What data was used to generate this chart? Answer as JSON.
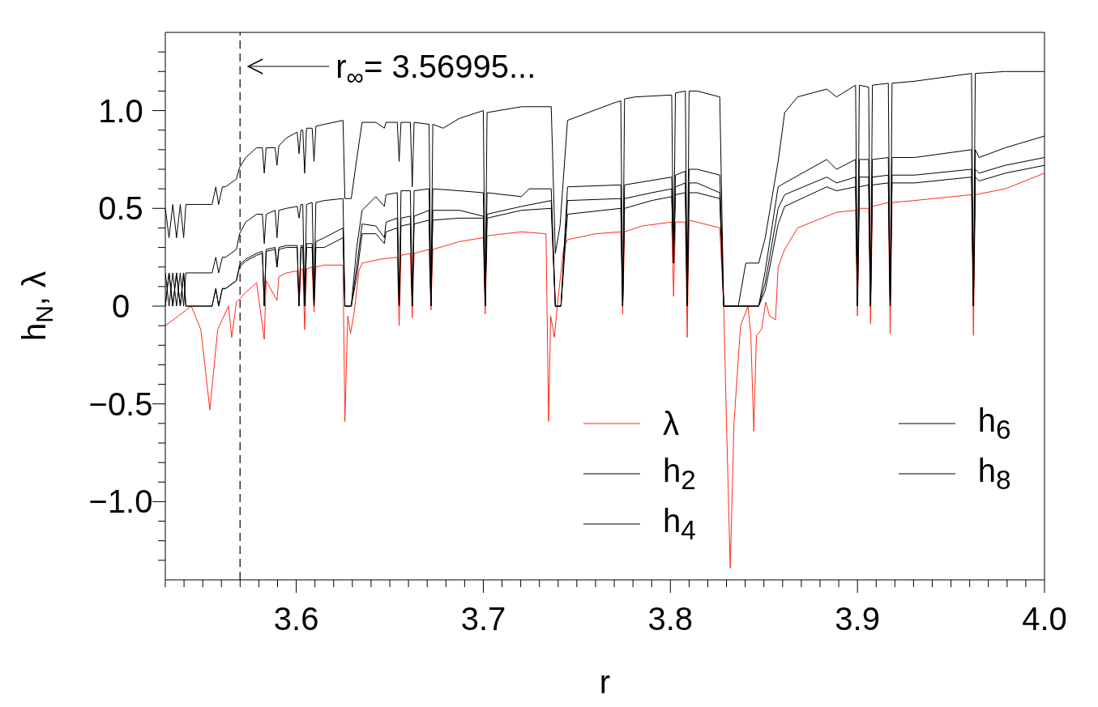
{
  "chart_data": {
    "type": "line",
    "xlabel": "r",
    "ylabel": "h$_{N}$,  λ",
    "xlim": [
      3.53,
      4.0
    ],
    "xticks": [
      {
        "value": 3.53,
        "label": null
      },
      {
        "value": 3.54,
        "label": null
      },
      {
        "value": 3.55,
        "label": null
      },
      {
        "value": 3.56,
        "label": null
      },
      {
        "value": 3.57,
        "label": null
      },
      {
        "value": 3.58,
        "label": null
      },
      {
        "value": 3.59,
        "label": null
      },
      3.6,
      {
        "value": 3.61,
        "label": null
      },
      {
        "value": 3.62,
        "label": null
      },
      {
        "value": 3.63,
        "label": null
      },
      {
        "value": 3.64,
        "label": null
      },
      {
        "value": 3.65,
        "label": null
      },
      {
        "value": 3.66,
        "label": null
      },
      {
        "value": 3.67,
        "label": null
      },
      {
        "value": 3.68,
        "label": null
      },
      {
        "value": 3.69,
        "label": null
      },
      3.7,
      {
        "value": 3.71,
        "label": null
      },
      {
        "value": 3.72,
        "label": null
      },
      {
        "value": 3.73,
        "label": null
      },
      {
        "value": 3.74,
        "label": null
      },
      {
        "value": 3.75,
        "label": null
      },
      {
        "value": 3.76,
        "label": null
      },
      {
        "value": 3.77,
        "label": null
      },
      {
        "value": 3.78,
        "label": null
      },
      {
        "value": 3.79,
        "label": null
      },
      3.8,
      {
        "value": 3.81,
        "label": null
      },
      {
        "value": 3.82,
        "label": null
      },
      {
        "value": 3.83,
        "label": null
      },
      {
        "value": 3.84,
        "label": null
      },
      {
        "value": 3.85,
        "label": null
      },
      {
        "value": 3.86,
        "label": null
      },
      {
        "value": 3.87,
        "label": null
      },
      {
        "value": 3.88,
        "label": null
      },
      {
        "value": 3.89,
        "label": null
      },
      3.9,
      {
        "value": 3.91,
        "label": null
      },
      {
        "value": 3.92,
        "label": null
      },
      {
        "value": 3.93,
        "label": null
      },
      {
        "value": 3.94,
        "label": null
      },
      {
        "value": 3.95,
        "label": null
      },
      {
        "value": 3.96,
        "label": null
      },
      {
        "value": 3.97,
        "label": null
      },
      {
        "value": 3.98,
        "label": null
      },
      {
        "value": 3.99,
        "label": null
      },
      {
        "value": 4.0,
        "label": "4.0"
      }
    ],
    "ylim": [
      -1.4,
      1.4
    ],
    "yticks": [
      {
        "value": -1.3,
        "label": null
      },
      {
        "value": -1.2,
        "label": null
      },
      {
        "value": -1.1,
        "label": null
      },
      {
        "value": -1.0,
        "label": "−1.0"
      },
      {
        "value": -0.9,
        "label": null
      },
      {
        "value": -0.8,
        "label": null
      },
      {
        "value": -0.7,
        "label": null
      },
      {
        "value": -0.6,
        "label": null
      },
      {
        "value": -0.5,
        "label": "−0.5"
      },
      {
        "value": -0.4,
        "label": null
      },
      {
        "value": -0.3,
        "label": null
      },
      {
        "value": -0.2,
        "label": null
      },
      {
        "value": -0.1,
        "label": null
      },
      0,
      {
        "value": 0.1,
        "label": null
      },
      {
        "value": 0.2,
        "label": null
      },
      {
        "value": 0.3,
        "label": null
      },
      {
        "value": 0.4,
        "label": null
      },
      0.5,
      {
        "value": 0.6,
        "label": null
      },
      {
        "value": 0.7,
        "label": null
      },
      {
        "value": 0.8,
        "label": null
      },
      {
        "value": 0.9,
        "label": null
      },
      {
        "value": 1.0,
        "label": "1.0"
      },
      {
        "value": 1.1,
        "label": null
      },
      {
        "value": 1.2,
        "label": null
      },
      {
        "value": 1.3,
        "label": null
      }
    ],
    "grid": false,
    "legend": "bottom right",
    "line_style": "solid",
    "ref_lines": [
      {
        "axis": "x",
        "value": 3.56995,
        "label": "r$_{∞}$= 3.56995...",
        "color": "#000000",
        "line_style": "dashed"
      }
    ],
    "series": [
      {
        "name": "λ",
        "color": "#ff2a1a",
        "x": [
          3.53,
          3.537,
          3.5439,
          3.549,
          3.5538,
          3.558,
          3.5638,
          3.5655,
          3.568,
          3.573,
          3.5788,
          3.5829,
          3.5839,
          3.5897,
          3.5907,
          3.5947,
          3.6005,
          3.6015,
          3.6025,
          3.6035,
          3.6045,
          3.6055,
          3.6085,
          3.6095,
          3.6105,
          3.615,
          3.625,
          3.626,
          3.6275,
          3.629,
          3.631,
          3.6335,
          3.6352,
          3.645,
          3.654,
          3.655,
          3.656,
          3.661,
          3.662,
          3.663,
          3.667,
          3.671,
          3.672,
          3.673,
          3.6872,
          3.7,
          3.701,
          3.702,
          3.7204,
          3.7335,
          3.7349,
          3.736,
          3.738,
          3.7395,
          3.743,
          3.745,
          3.76,
          3.7735,
          3.7745,
          3.7755,
          3.785,
          3.8007,
          3.8017,
          3.8027,
          3.808,
          3.809,
          3.81,
          3.8264,
          3.8285,
          3.83,
          3.832,
          3.834,
          3.8375,
          3.8415,
          3.843,
          3.8446,
          3.846,
          3.8487,
          3.851,
          3.853,
          3.8562,
          3.8576,
          3.8611,
          3.868,
          3.8888,
          3.899,
          3.9,
          3.901,
          3.906,
          3.907,
          3.908,
          3.9165,
          3.9175,
          3.9185,
          3.9304,
          3.961,
          3.962,
          3.963,
          3.979,
          4.0
        ],
        "values": [
          -0.1,
          -0.05,
          0.0,
          -0.12,
          -0.53,
          -0.12,
          0.0,
          -0.16,
          0.02,
          0.07,
          0.12,
          -0.17,
          0.13,
          0.03,
          0.15,
          0.17,
          0.18,
          0.0,
          0.19,
          0.19,
          -0.12,
          0.19,
          0.2,
          -0.03,
          0.2,
          0.21,
          0.21,
          -0.59,
          -0.05,
          -0.14,
          -0.03,
          0.18,
          0.22,
          0.24,
          0.25,
          -0.1,
          0.26,
          0.27,
          -0.06,
          0.27,
          0.28,
          0.29,
          -0.02,
          0.29,
          0.33,
          0.35,
          -0.04,
          0.36,
          0.38,
          0.37,
          -0.59,
          -0.05,
          -0.16,
          0.0,
          0.3,
          0.34,
          0.37,
          0.38,
          -0.04,
          0.38,
          0.41,
          0.43,
          0.05,
          0.43,
          0.43,
          -0.16,
          0.44,
          0.4,
          0.0,
          -0.6,
          -1.34,
          -0.6,
          -0.1,
          0.0,
          -0.15,
          -0.64,
          -0.15,
          -0.12,
          0.02,
          -0.05,
          -0.07,
          0.2,
          0.29,
          0.4,
          0.48,
          0.49,
          -0.05,
          0.5,
          0.5,
          -0.09,
          0.51,
          0.53,
          -0.14,
          0.53,
          0.54,
          0.57,
          -0.15,
          0.57,
          0.6,
          0.68
        ]
      },
      {
        "name": "h$_{2}$",
        "color": "#000000",
        "x": [
          3.53,
          3.532,
          3.534,
          3.536,
          3.538,
          3.5398,
          3.541,
          3.555,
          3.557,
          3.5585,
          3.5605,
          3.5622,
          3.568,
          3.5697,
          3.573,
          3.5788,
          3.5819,
          3.5829,
          3.5839,
          3.5887,
          3.5897,
          3.5907,
          3.5947,
          3.6005,
          3.6015,
          3.6025,
          3.6035,
          3.6045,
          3.6055,
          3.6085,
          3.6095,
          3.6105,
          3.615,
          3.625,
          3.626,
          3.6294,
          3.6323,
          3.6352,
          3.6425,
          3.6471,
          3.648,
          3.654,
          3.655,
          3.656,
          3.661,
          3.662,
          3.663,
          3.671,
          3.672,
          3.673,
          3.6785,
          3.6872,
          3.7,
          3.701,
          3.702,
          3.7204,
          3.7363,
          3.7385,
          3.741,
          3.745,
          3.77,
          3.7735,
          3.7745,
          3.7755,
          3.7813,
          3.8007,
          3.8017,
          3.8027,
          3.808,
          3.809,
          3.81,
          3.8143,
          3.8264,
          3.8285,
          3.8363,
          3.8403,
          3.8472,
          3.8507,
          3.8576,
          3.8611,
          3.868,
          3.8836,
          3.8888,
          3.899,
          3.9,
          3.901,
          3.906,
          3.907,
          3.908,
          3.9165,
          3.9175,
          3.9185,
          3.9304,
          3.961,
          3.962,
          3.963,
          3.979,
          4.0
        ],
        "values": [
          0.5,
          0.35,
          0.52,
          0.35,
          0.52,
          0.35,
          0.52,
          0.52,
          0.61,
          0.52,
          0.61,
          0.61,
          0.65,
          0.71,
          0.76,
          0.81,
          0.81,
          0.68,
          0.81,
          0.81,
          0.72,
          0.82,
          0.86,
          0.89,
          0.78,
          0.9,
          0.9,
          0.68,
          0.91,
          0.91,
          0.74,
          0.92,
          0.93,
          0.95,
          0.55,
          0.55,
          0.75,
          0.94,
          0.94,
          0.91,
          0.94,
          0.94,
          0.74,
          0.94,
          0.94,
          0.61,
          0.94,
          0.93,
          0.0,
          0.93,
          0.91,
          0.96,
          1.0,
          0.0,
          0.99,
          1.02,
          1.02,
          0.27,
          0.41,
          0.95,
          1.04,
          1.05,
          0.0,
          1.06,
          1.07,
          1.08,
          0.22,
          1.09,
          1.1,
          0.0,
          1.1,
          1.1,
          1.07,
          0.0,
          0.0,
          0.22,
          0.22,
          0.35,
          0.74,
          0.99,
          1.07,
          1.11,
          1.07,
          1.13,
          0.0,
          1.13,
          1.12,
          0.0,
          1.13,
          1.14,
          0.0,
          1.14,
          1.15,
          1.19,
          0.0,
          1.19,
          1.2,
          1.2
        ]
      },
      {
        "name": "h$_{4}$",
        "color": "#000000",
        "x": [
          3.53,
          3.532,
          3.534,
          3.536,
          3.538,
          3.5398,
          3.541,
          3.555,
          3.557,
          3.5585,
          3.5605,
          3.5622,
          3.568,
          3.5697,
          3.573,
          3.5788,
          3.5819,
          3.5829,
          3.5839,
          3.5887,
          3.5897,
          3.5907,
          3.5947,
          3.6005,
          3.6015,
          3.6025,
          3.6035,
          3.6045,
          3.6055,
          3.6085,
          3.6095,
          3.6105,
          3.615,
          3.625,
          3.626,
          3.6294,
          3.6323,
          3.6352,
          3.6425,
          3.6471,
          3.648,
          3.654,
          3.655,
          3.656,
          3.661,
          3.662,
          3.663,
          3.671,
          3.672,
          3.673,
          3.6872,
          3.7,
          3.701,
          3.702,
          3.7204,
          3.7245,
          3.7363,
          3.7385,
          3.7415,
          3.745,
          3.7735,
          3.7745,
          3.7755,
          3.8007,
          3.8017,
          3.8027,
          3.808,
          3.809,
          3.81,
          3.8143,
          3.8264,
          3.8285,
          3.8472,
          3.8507,
          3.8576,
          3.8611,
          3.8836,
          3.8888,
          3.899,
          3.9,
          3.901,
          3.906,
          3.907,
          3.908,
          3.9165,
          3.9175,
          3.9185,
          3.9304,
          3.961,
          3.962,
          3.963,
          3.965,
          3.979,
          4.0
        ],
        "values": [
          0.17,
          0.0,
          0.17,
          0.0,
          0.17,
          0.0,
          0.17,
          0.17,
          0.25,
          0.17,
          0.25,
          0.25,
          0.29,
          0.37,
          0.43,
          0.47,
          0.47,
          0.32,
          0.47,
          0.49,
          0.35,
          0.49,
          0.5,
          0.51,
          0.45,
          0.52,
          0.52,
          0.0,
          0.52,
          0.53,
          0.08,
          0.53,
          0.54,
          0.55,
          0.0,
          0.0,
          0.3,
          0.49,
          0.56,
          0.51,
          0.57,
          0.58,
          0.0,
          0.59,
          0.59,
          0.0,
          0.59,
          0.6,
          0.0,
          0.6,
          0.59,
          0.58,
          0.0,
          0.58,
          0.56,
          0.6,
          0.6,
          0.0,
          0.0,
          0.61,
          0.62,
          0.0,
          0.62,
          0.66,
          0.22,
          0.67,
          0.69,
          0.0,
          0.7,
          0.7,
          0.67,
          0.0,
          0.0,
          0.18,
          0.61,
          0.63,
          0.75,
          0.7,
          0.75,
          0.0,
          0.75,
          0.75,
          0.0,
          0.75,
          0.76,
          0.0,
          0.76,
          0.76,
          0.8,
          0.0,
          0.8,
          0.76,
          0.81,
          0.87
        ]
      },
      {
        "name": "h$_{6}$",
        "color": "#000000",
        "x": [
          3.53,
          3.532,
          3.534,
          3.536,
          3.538,
          3.5398,
          3.541,
          3.555,
          3.557,
          3.5585,
          3.5605,
          3.5622,
          3.568,
          3.5697,
          3.573,
          3.5788,
          3.5819,
          3.5829,
          3.5839,
          3.5887,
          3.5897,
          3.5907,
          3.5947,
          3.6005,
          3.6015,
          3.6025,
          3.6035,
          3.6045,
          3.6055,
          3.6085,
          3.6095,
          3.6105,
          3.615,
          3.625,
          3.626,
          3.6294,
          3.6323,
          3.6352,
          3.6425,
          3.6471,
          3.648,
          3.654,
          3.655,
          3.656,
          3.661,
          3.662,
          3.663,
          3.671,
          3.672,
          3.673,
          3.6872,
          3.7,
          3.701,
          3.702,
          3.7204,
          3.7363,
          3.7385,
          3.7415,
          3.745,
          3.7735,
          3.7745,
          3.7755,
          3.79,
          3.8007,
          3.8017,
          3.8027,
          3.808,
          3.809,
          3.81,
          3.8143,
          3.8264,
          3.8285,
          3.8472,
          3.8507,
          3.8576,
          3.8611,
          3.8836,
          3.8888,
          3.899,
          3.9,
          3.901,
          3.906,
          3.907,
          3.908,
          3.9165,
          3.9175,
          3.9185,
          3.9304,
          3.961,
          3.962,
          3.963,
          3.965,
          3.979,
          4.0
        ],
        "values": [
          0.0,
          0.17,
          0.0,
          0.17,
          0.0,
          0.17,
          0.0,
          0.0,
          0.09,
          0.0,
          0.09,
          0.09,
          0.13,
          0.21,
          0.24,
          0.27,
          0.28,
          0.0,
          0.29,
          0.3,
          0.2,
          0.3,
          0.31,
          0.31,
          0.0,
          0.31,
          0.31,
          0.0,
          0.32,
          0.32,
          0.0,
          0.33,
          0.35,
          0.4,
          0.0,
          0.0,
          0.2,
          0.42,
          0.41,
          0.35,
          0.43,
          0.45,
          0.0,
          0.45,
          0.46,
          0.0,
          0.46,
          0.49,
          0.0,
          0.49,
          0.49,
          0.46,
          0.0,
          0.47,
          0.51,
          0.54,
          0.0,
          0.0,
          0.54,
          0.55,
          0.0,
          0.55,
          0.58,
          0.6,
          0.22,
          0.61,
          0.63,
          0.0,
          0.63,
          0.63,
          0.58,
          0.0,
          0.0,
          0.12,
          0.5,
          0.57,
          0.66,
          0.63,
          0.66,
          0.0,
          0.66,
          0.66,
          0.0,
          0.66,
          0.67,
          0.0,
          0.67,
          0.67,
          0.7,
          0.0,
          0.7,
          0.68,
          0.72,
          0.76
        ]
      },
      {
        "name": "h$_{8}$",
        "color": "#000000",
        "x": [
          3.53,
          3.532,
          3.534,
          3.536,
          3.538,
          3.5398,
          3.541,
          3.555,
          3.557,
          3.5585,
          3.5605,
          3.5622,
          3.568,
          3.5697,
          3.573,
          3.5788,
          3.5819,
          3.5829,
          3.5839,
          3.5887,
          3.5897,
          3.5907,
          3.5947,
          3.6005,
          3.6015,
          3.6025,
          3.6035,
          3.6045,
          3.6055,
          3.6085,
          3.6095,
          3.6105,
          3.615,
          3.625,
          3.626,
          3.6294,
          3.6323,
          3.6352,
          3.6425,
          3.6471,
          3.648,
          3.654,
          3.655,
          3.656,
          3.661,
          3.662,
          3.663,
          3.671,
          3.672,
          3.673,
          3.6872,
          3.7,
          3.701,
          3.702,
          3.7204,
          3.7363,
          3.7385,
          3.7415,
          3.745,
          3.7735,
          3.7745,
          3.7755,
          3.79,
          3.8007,
          3.8017,
          3.8027,
          3.808,
          3.809,
          3.81,
          3.8143,
          3.8264,
          3.8285,
          3.8472,
          3.8507,
          3.8576,
          3.8611,
          3.8836,
          3.8888,
          3.899,
          3.9,
          3.901,
          3.906,
          3.907,
          3.908,
          3.9165,
          3.9175,
          3.9185,
          3.9304,
          3.961,
          3.962,
          3.963,
          3.965,
          3.979,
          4.0
        ],
        "values": [
          0.0,
          0.17,
          0.0,
          0.17,
          0.0,
          0.17,
          0.0,
          0.0,
          0.09,
          0.0,
          0.09,
          0.09,
          0.13,
          0.2,
          0.23,
          0.26,
          0.27,
          0.0,
          0.28,
          0.29,
          0.2,
          0.29,
          0.3,
          0.3,
          0.0,
          0.3,
          0.3,
          0.0,
          0.3,
          0.3,
          0.0,
          0.3,
          0.3,
          0.35,
          0.0,
          0.0,
          0.15,
          0.37,
          0.37,
          0.32,
          0.38,
          0.4,
          0.0,
          0.41,
          0.42,
          0.0,
          0.42,
          0.44,
          0.0,
          0.44,
          0.45,
          0.45,
          0.0,
          0.45,
          0.49,
          0.5,
          0.0,
          0.0,
          0.47,
          0.5,
          0.0,
          0.5,
          0.54,
          0.56,
          0.22,
          0.57,
          0.58,
          0.0,
          0.58,
          0.58,
          0.55,
          0.0,
          0.0,
          0.08,
          0.42,
          0.51,
          0.61,
          0.59,
          0.61,
          0.0,
          0.61,
          0.62,
          0.0,
          0.62,
          0.63,
          0.0,
          0.63,
          0.63,
          0.66,
          0.0,
          0.66,
          0.64,
          0.68,
          0.72
        ]
      }
    ]
  }
}
